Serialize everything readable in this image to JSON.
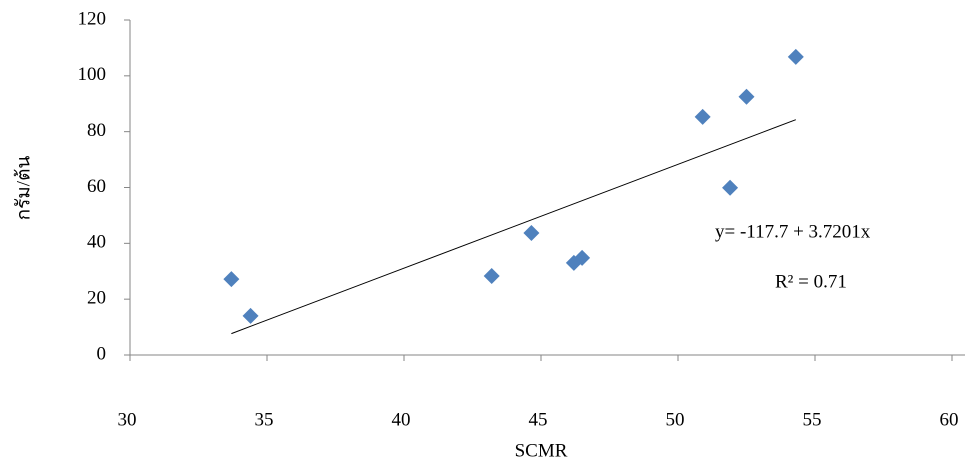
{
  "chart_data": {
    "type": "scatter",
    "x_label": "SCMR",
    "y_label": "กรัม/ต้น",
    "x": [
      33.7,
      34.4,
      43.2,
      44.65,
      46.2,
      46.5,
      50.9,
      51.9,
      52.5,
      54.3
    ],
    "series": [
      {
        "name": "SCMR",
        "color": "#4f81bd",
        "values": [
          27.2,
          14,
          28.3,
          43.7,
          33,
          34.8,
          85.3,
          59.9,
          92.5,
          106.8
        ]
      }
    ],
    "trendline": {
      "intercept": -117.7,
      "slope": 3.7201,
      "color": "#000000"
    },
    "annotations": [
      "y= -117.7 + 3.7201x",
      "R² = 0.71"
    ],
    "xlim": [
      30,
      60
    ],
    "xticks": [
      30,
      35,
      40,
      45,
      50,
      55,
      60
    ],
    "ylim": [
      0,
      120
    ],
    "yticks": [
      0,
      20,
      40,
      60,
      80,
      100,
      120
    ]
  }
}
